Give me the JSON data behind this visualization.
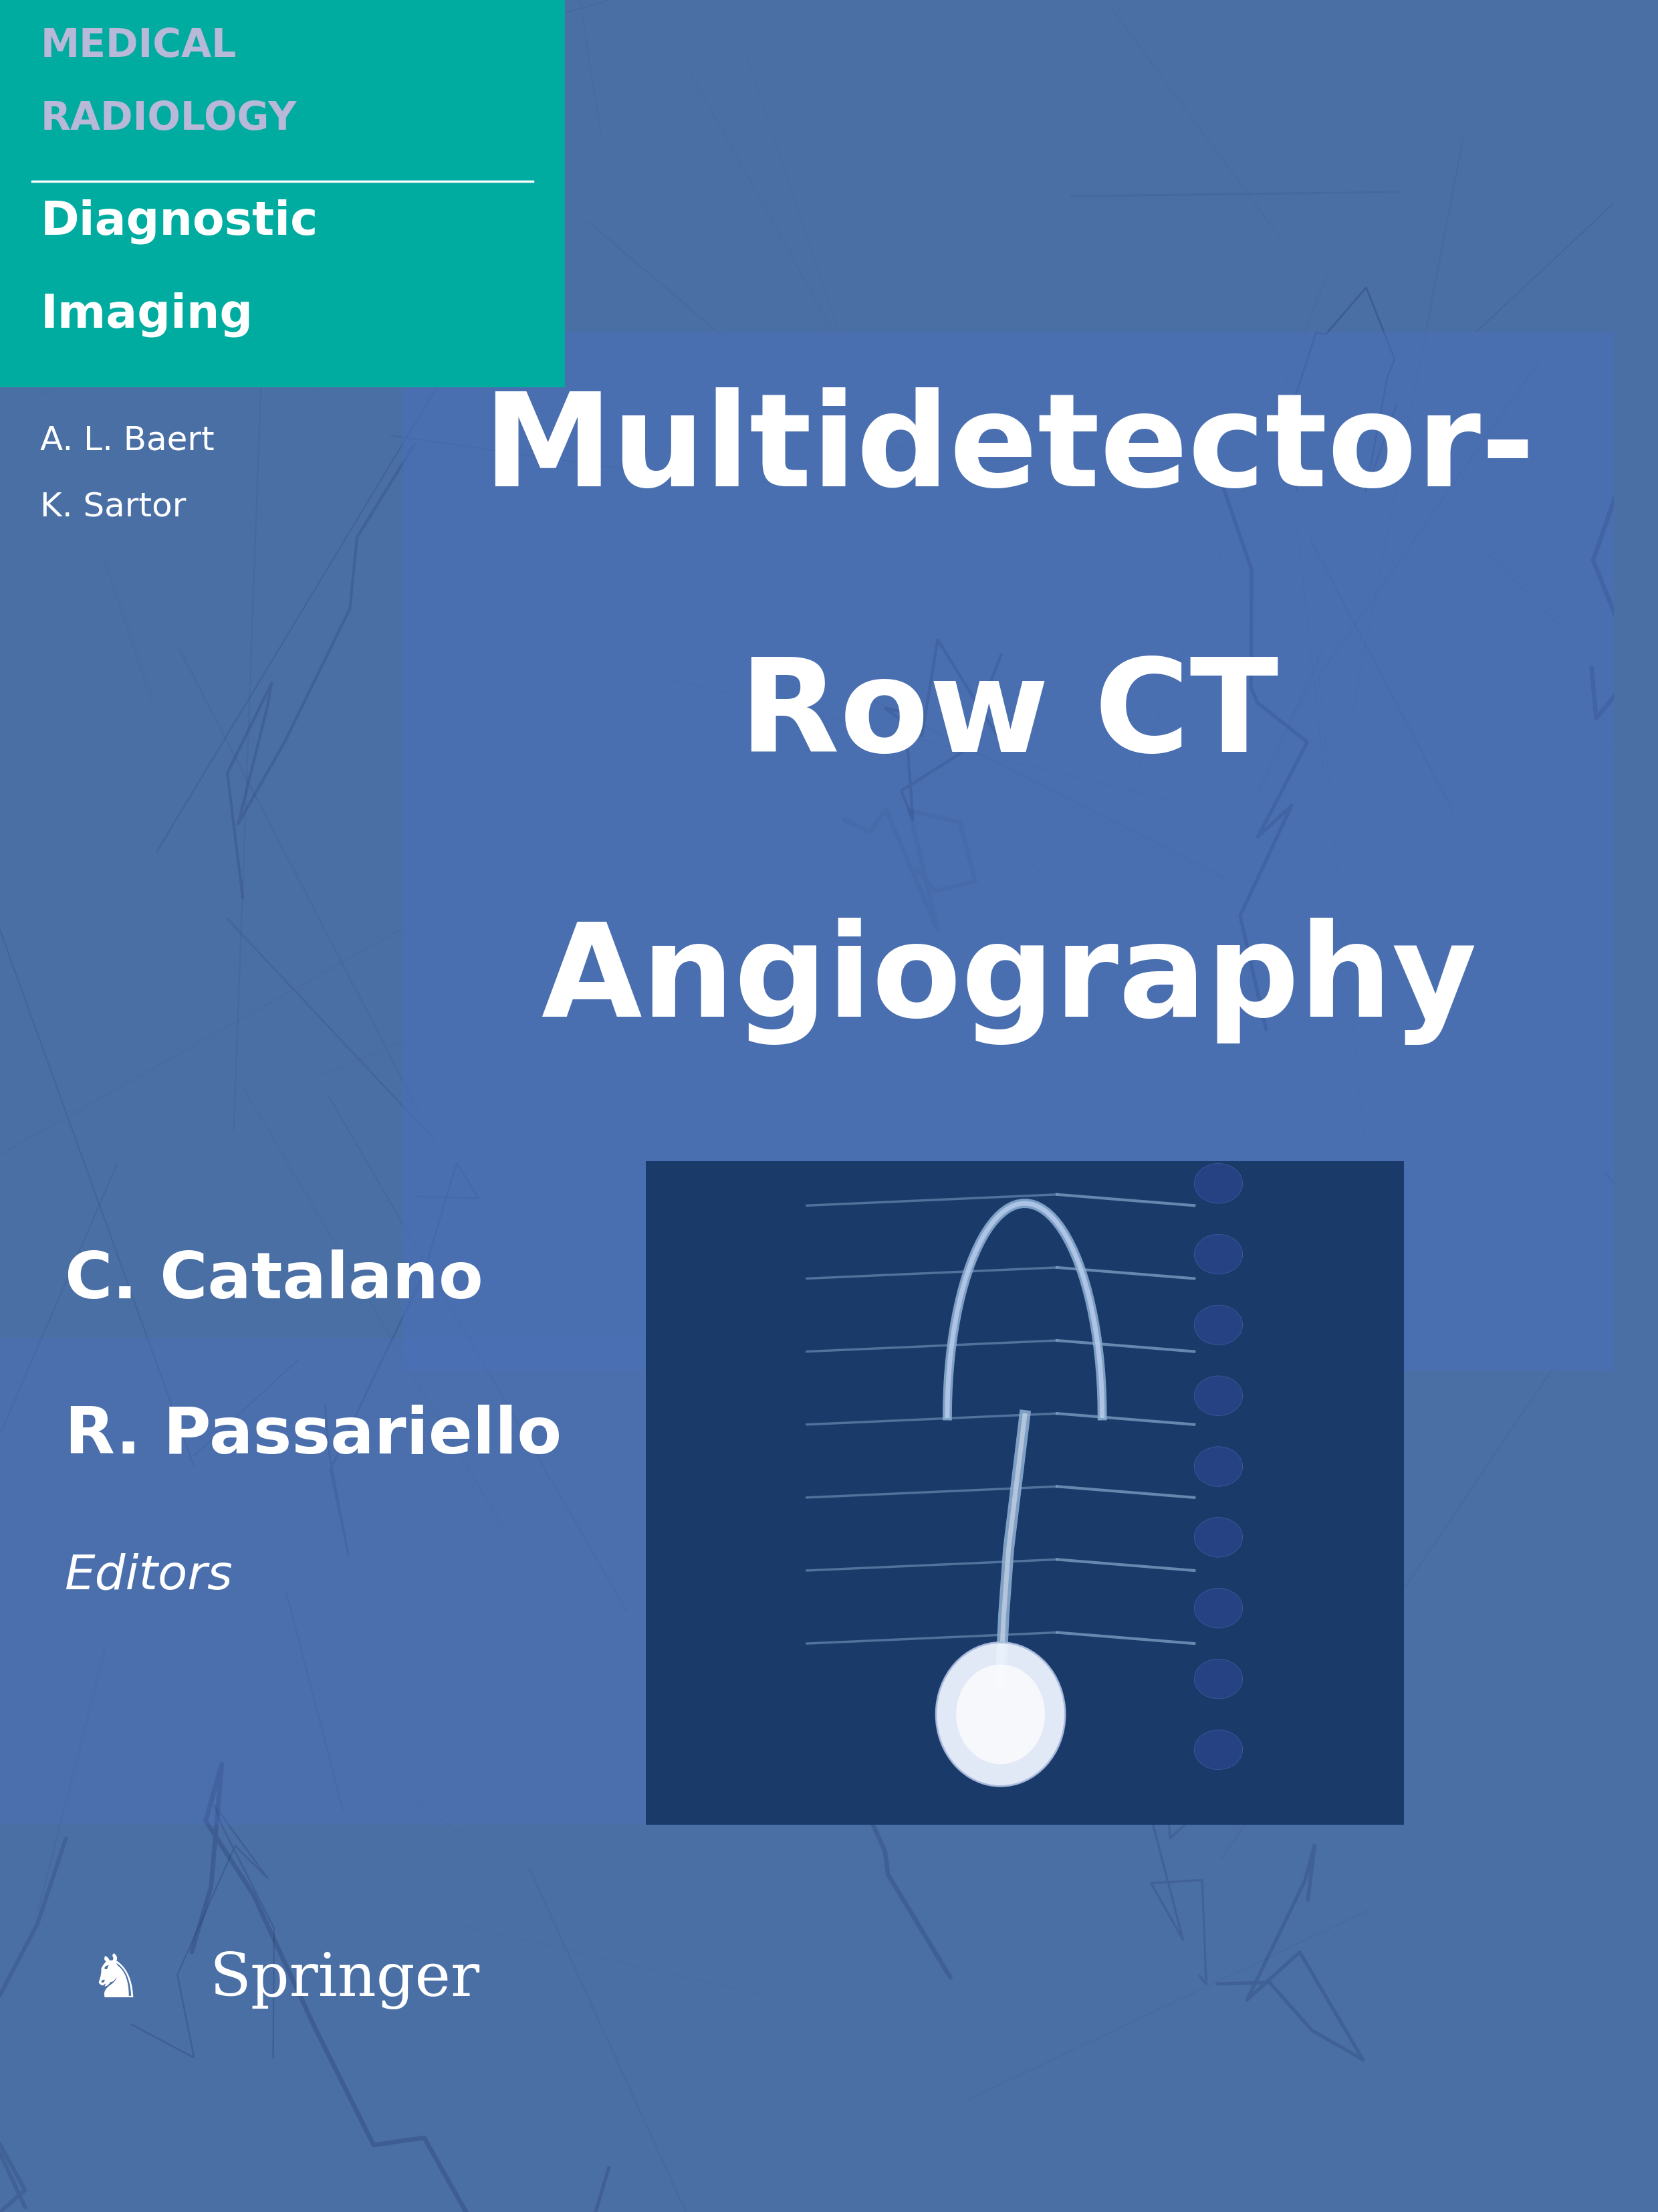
{
  "bg_color": "#4a6fa5",
  "teal_color": "#00aba0",
  "teal_text_color": "#b8b8d8",
  "white_color": "#ffffff",
  "title_line1": "Multidetector-",
  "title_line2": "Row CT",
  "title_line3": "Angiography",
  "series_label1": "MEDICAL",
  "series_label2": "RADIOLOGY",
  "sub_label1": "Diagnostic",
  "sub_label2": "Imaging",
  "editor1": "C. Catalano",
  "editor2": "R. Passariello",
  "editors_label": "Editors",
  "author1": "A. L. Baert",
  "author2": "K. Sartor",
  "publisher": "Springer",
  "ct_image_bg": "#1a3a6a"
}
